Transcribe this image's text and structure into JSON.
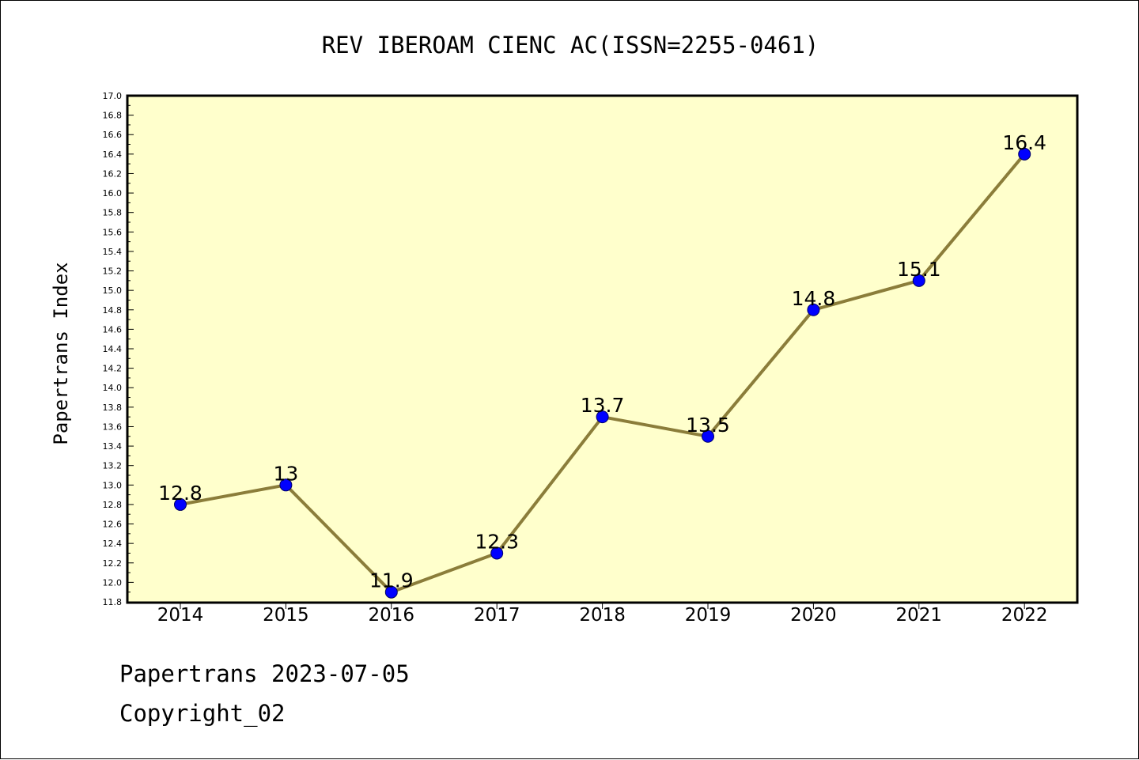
{
  "chart_data": {
    "type": "line",
    "title": "REV IBEROAM CIENC AC(ISSN=2255-0461)",
    "xlabel": "",
    "ylabel": "Papertrans Index",
    "categories": [
      "2014",
      "2015",
      "2016",
      "2017",
      "2018",
      "2019",
      "2020",
      "2021",
      "2022"
    ],
    "series": [
      {
        "values": [
          12.8,
          13.0,
          11.9,
          12.3,
          13.7,
          13.5,
          14.8,
          15.1,
          16.4
        ],
        "data_labels": [
          "12.8",
          "13",
          "11.9",
          "12.3",
          "13.7",
          "13.5",
          "14.8",
          "15.1",
          "16.4"
        ]
      }
    ],
    "ylim": [
      11.8,
      17.0
    ],
    "ytick_labels": [
      "11.8",
      "12.0",
      "12.2",
      "12.4",
      "12.6",
      "12.8",
      "13.0",
      "13.2",
      "13.4",
      "13.6",
      "13.8",
      "14.0",
      "14.2",
      "14.4",
      "14.6",
      "14.8",
      "15.0",
      "15.2",
      "15.4",
      "15.6",
      "15.8",
      "16.0",
      "16.2",
      "16.4",
      "16.6",
      "16.8",
      "17.0"
    ],
    "grid": false,
    "legend": "none",
    "colors": {
      "plot_background": "#ffffcc",
      "line": "#8b7d3a",
      "marker": "#0000ff"
    }
  },
  "footer": {
    "source": "Papertrans 2023-07-05",
    "copyright": "Copyright_02"
  }
}
